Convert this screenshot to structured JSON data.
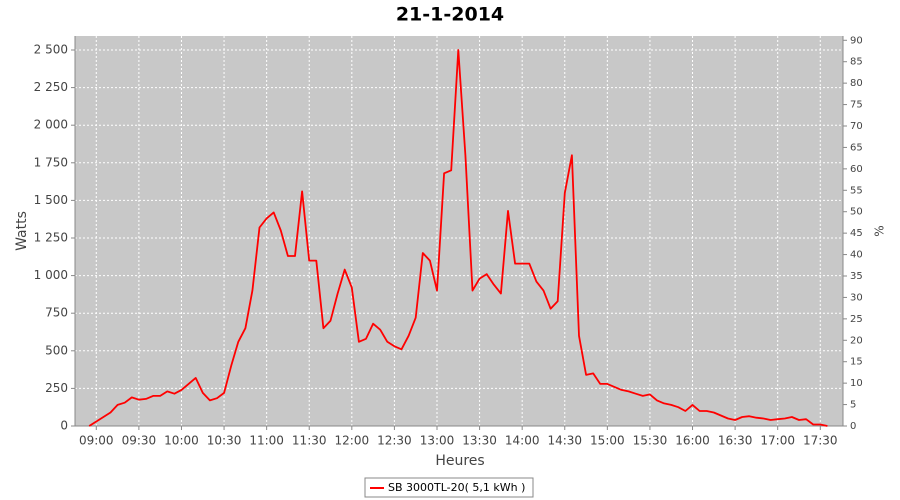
{
  "chart_data": {
    "type": "line",
    "title": "21-1-2014",
    "xlabel": "Heures",
    "ylabel": "Watts",
    "y2label": "%",
    "x": [
      "08:55",
      "09:00",
      "09:05",
      "09:10",
      "09:15",
      "09:20",
      "09:25",
      "09:30",
      "09:35",
      "09:40",
      "09:45",
      "09:50",
      "09:55",
      "10:00",
      "10:05",
      "10:10",
      "10:15",
      "10:20",
      "10:25",
      "10:30",
      "10:35",
      "10:40",
      "10:45",
      "10:50",
      "10:55",
      "11:00",
      "11:05",
      "11:10",
      "11:15",
      "11:20",
      "11:25",
      "11:30",
      "11:35",
      "11:40",
      "11:45",
      "11:50",
      "11:55",
      "12:00",
      "12:05",
      "12:10",
      "12:15",
      "12:20",
      "12:25",
      "12:30",
      "12:35",
      "12:40",
      "12:45",
      "12:50",
      "12:55",
      "13:00",
      "13:05",
      "13:10",
      "13:15",
      "13:20",
      "13:25",
      "13:30",
      "13:35",
      "13:40",
      "13:45",
      "13:50",
      "13:55",
      "14:00",
      "14:05",
      "14:10",
      "14:15",
      "14:20",
      "14:25",
      "14:30",
      "14:35",
      "14:40",
      "14:45",
      "14:50",
      "14:55",
      "15:00",
      "15:05",
      "15:10",
      "15:15",
      "15:20",
      "15:25",
      "15:30",
      "15:35",
      "15:40",
      "15:45",
      "15:50",
      "15:55",
      "16:00",
      "16:05",
      "16:10",
      "16:15",
      "16:20",
      "16:25",
      "16:30",
      "16:35",
      "16:40",
      "16:45",
      "16:50",
      "16:55",
      "17:00",
      "17:05",
      "17:10",
      "17:15",
      "17:20",
      "17:25",
      "17:30",
      "17:35"
    ],
    "series": [
      {
        "name": "SB 3000TL-20( 5,1 kWh )",
        "color": "#ff0000",
        "values": [
          0,
          30,
          60,
          90,
          140,
          155,
          190,
          175,
          180,
          200,
          200,
          230,
          215,
          240,
          280,
          320,
          220,
          170,
          185,
          220,
          400,
          560,
          650,
          900,
          1320,
          1380,
          1420,
          1300,
          1130,
          1130,
          1560,
          1100,
          1100,
          650,
          700,
          880,
          1040,
          920,
          560,
          580,
          680,
          640,
          560,
          530,
          510,
          600,
          720,
          1150,
          1100,
          900,
          1680,
          1700,
          2500,
          1800,
          900,
          980,
          1010,
          940,
          880,
          1430,
          1080,
          1080,
          1080,
          960,
          900,
          780,
          830,
          1550,
          1800,
          600,
          340,
          350,
          280,
          280,
          260,
          240,
          230,
          215,
          200,
          210,
          170,
          150,
          140,
          125,
          100,
          140,
          100,
          100,
          90,
          70,
          50,
          40,
          60,
          65,
          55,
          50,
          40,
          45,
          50,
          60,
          40,
          45,
          10,
          10,
          0
        ]
      }
    ],
    "xlim": [
      "08:45",
      "17:46"
    ],
    "xticks": [
      "09:00",
      "09:30",
      "10:00",
      "10:30",
      "11:00",
      "11:30",
      "12:00",
      "12:30",
      "13:00",
      "13:30",
      "14:00",
      "14:30",
      "15:00",
      "15:30",
      "16:00",
      "16:30",
      "17:00",
      "17:30"
    ],
    "ylim": [
      0,
      2593
    ],
    "yticks": [
      0,
      250,
      500,
      750,
      {
        "value": 1000,
        "label": "1 000"
      },
      {
        "value": 1250,
        "label": "1 250"
      },
      {
        "value": 1500,
        "label": "1 500"
      },
      {
        "value": 1750,
        "label": "1 750"
      },
      {
        "value": 2000,
        "label": "2 000"
      },
      {
        "value": 2250,
        "label": "2 250"
      },
      {
        "value": 2500,
        "label": "2 500"
      }
    ],
    "y2lim": [
      0,
      91
    ],
    "y2ticks": [
      0,
      5,
      10,
      15,
      20,
      25,
      30,
      35,
      40,
      45,
      50,
      55,
      60,
      65,
      70,
      75,
      80,
      85,
      90
    ],
    "grid": true,
    "legend": "bottom"
  }
}
